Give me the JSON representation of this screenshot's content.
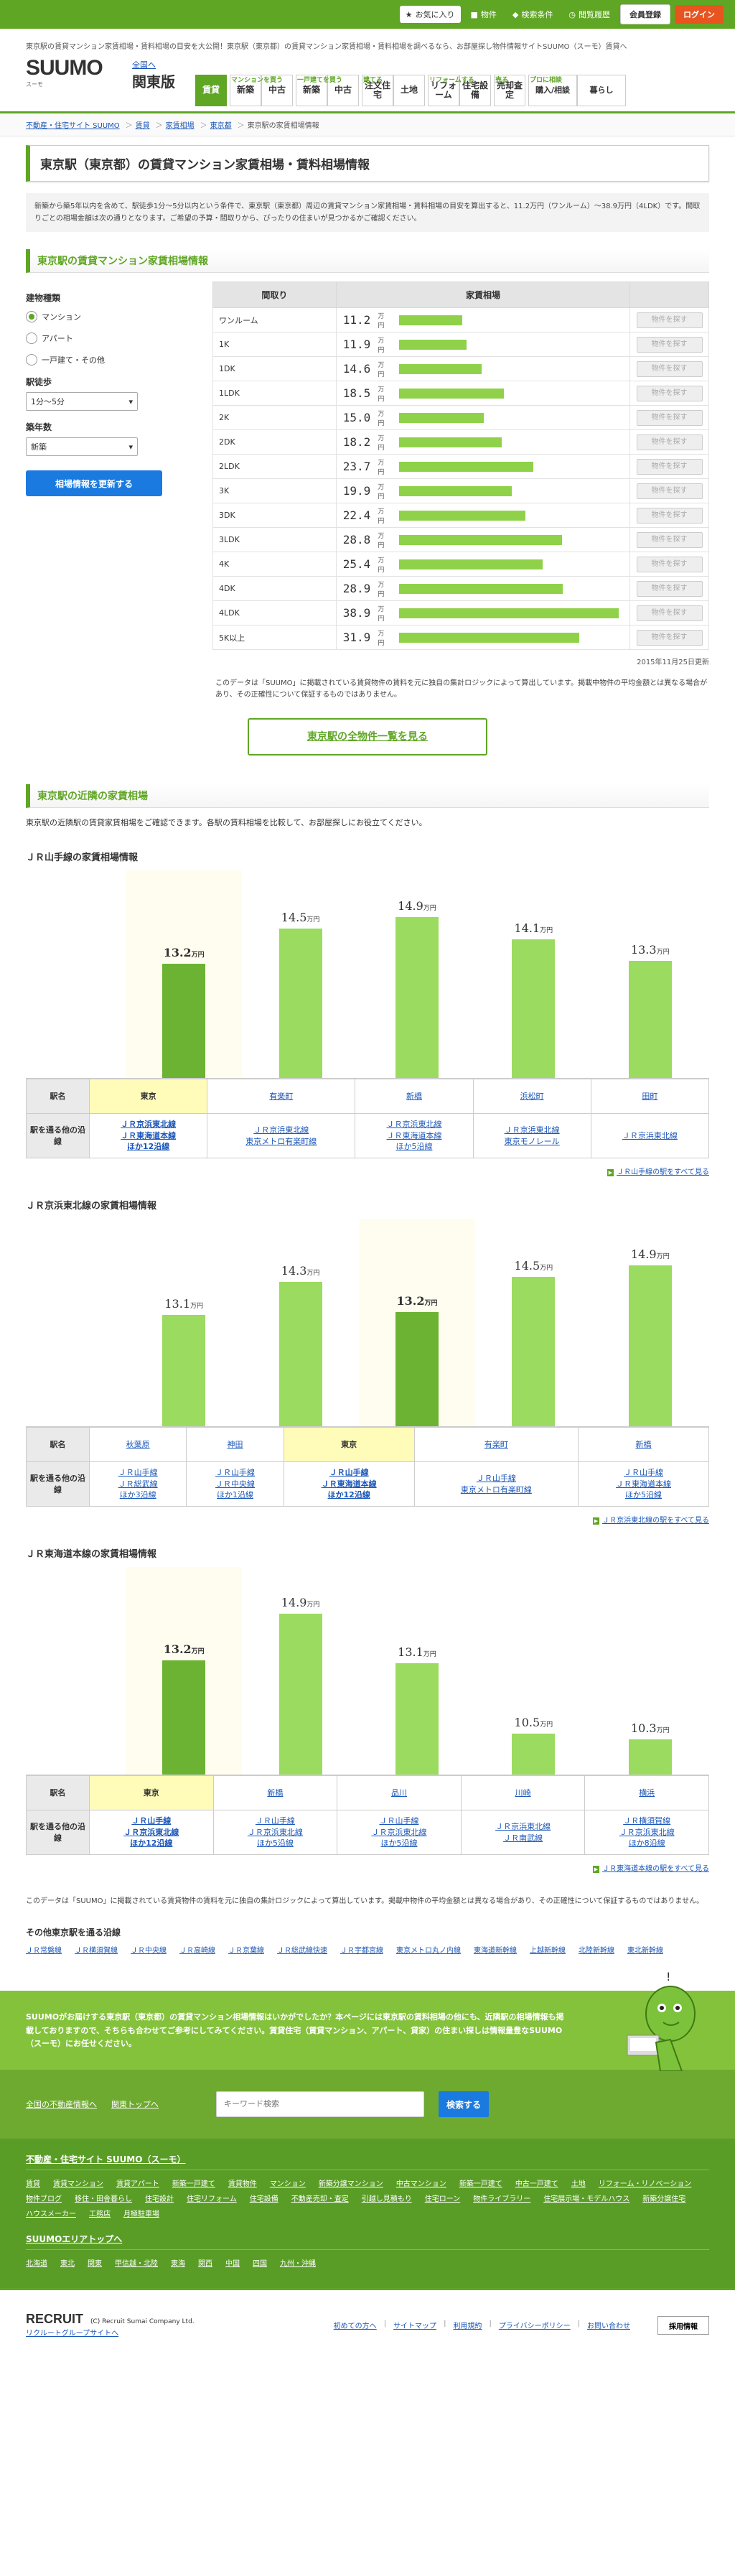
{
  "topbar": {
    "fav": "お気に入り",
    "property": "物件",
    "search_cond": "検索条件",
    "history": "閲覧履歴",
    "register": "会員登録",
    "login": "ログイン"
  },
  "header": {
    "tagline": "東京駅の賃貸マンション家賃相場・賃料相場の目安を大公開！東京駅（東京都）の賃貸マンション家賃相場・賃料相場を調べるなら、お部屋探し物件情報サイトSUUMO（スーモ）賃貸へ",
    "logo": "SUUMO",
    "logo_sub": "スーモ",
    "region": "全国へ",
    "region_name": "関東版",
    "nav": [
      {
        "label": "借りる",
        "items": [
          "賃貸"
        ]
      },
      {
        "label": "マンションを買う",
        "items": [
          "新築",
          "中古"
        ]
      },
      {
        "label": "一戸建てを買う",
        "items": [
          "新築",
          "中古"
        ]
      },
      {
        "label": "建てる",
        "items": [
          "注文住宅",
          "土地"
        ]
      },
      {
        "label": "リフォームする",
        "items": [
          "リフォーム",
          "住宅設備"
        ]
      },
      {
        "label": "売る",
        "items": [
          "売却査定"
        ]
      },
      {
        "label": "プロに相談",
        "items": [
          "購入/相談",
          "暮らし"
        ]
      }
    ]
  },
  "breadcrumb": [
    "不動産・住宅サイト SUUMO",
    "賃貸",
    "家賃相場",
    "東京都",
    "東京駅の家賃相場情報"
  ],
  "page_title": "東京駅（東京都）の賃貸マンション家賃相場・賃料相場情報",
  "intro": "新築から築5年以内を含めて、駅徒歩1分〜5分以内という条件で、東京駅（東京都）周辺の賃貸マンション家賃相場・賃料相場の目安を算出すると、11.2万円（ワンルーム）〜38.9万円（4LDK）です。間取りごとの相場金額は次の通りとなります。ご希望の予算・間取りから、ぴったりの住まいが見つかるかご確認ください。",
  "rent_section": {
    "title": "東京駅の賃貸マンション家賃相場情報",
    "side": {
      "type_label": "建物種類",
      "types": [
        "マンション",
        "アパート",
        "一戸建て・その他"
      ],
      "walk_label": "駅徒歩",
      "walk_value": "1分〜5分",
      "age_label": "築年数",
      "age_value": "新築",
      "update_btn": "相場情報を更新する"
    },
    "col_madori": "間取り",
    "col_rent": "家賃相場",
    "unit": "万円",
    "btn_label": "物件を探す",
    "rows": [
      {
        "m": "ワンルーム",
        "v": 11.2
      },
      {
        "m": "1K",
        "v": 11.9
      },
      {
        "m": "1DK",
        "v": 14.6
      },
      {
        "m": "1LDK",
        "v": 18.5
      },
      {
        "m": "2K",
        "v": 15.0
      },
      {
        "m": "2DK",
        "v": 18.2
      },
      {
        "m": "2LDK",
        "v": 23.7
      },
      {
        "m": "3K",
        "v": 19.9
      },
      {
        "m": "3DK",
        "v": 22.4
      },
      {
        "m": "3LDK",
        "v": 28.8
      },
      {
        "m": "4K",
        "v": 25.4
      },
      {
        "m": "4DK",
        "v": 28.9
      },
      {
        "m": "4LDK",
        "v": 38.9
      },
      {
        "m": "5K以上",
        "v": 31.9
      }
    ],
    "date": "2015年11月25日更新",
    "note": "このデータは「SUUMO」に掲載されている賃貸物件の賃料を元に独自の集計ロジックによって算出しています。掲載中物件の平均金額とは異なる場合があり、その正確性について保証するものではありません。",
    "list_btn": "東京駅の全物件一覧を見る"
  },
  "neighbor": {
    "title": "東京駅の近隣の家賃相場",
    "intro": "東京駅の近隣駅の賃貸家賃相場をご確認できます。各駅の賃料相場を比較して、お部屋探しにお役立てください。",
    "row_name": "駅名",
    "row_lines": "駅を通る他の沿線",
    "lines": [
      {
        "title": "ＪＲ山手線の家賃相場情報",
        "more": "ＪＲ山手線の駅をすべて見る",
        "stations": [
          {
            "name": "東京",
            "v": 13.2,
            "hl": true,
            "other": [
              "ＪＲ京浜東北線",
              "ＪＲ東海道本線",
              "ほか12沿線"
            ]
          },
          {
            "name": "有楽町",
            "v": 14.5,
            "other": [
              "ＪＲ京浜東北線",
              "東京メトロ有楽町線"
            ]
          },
          {
            "name": "新橋",
            "v": 14.9,
            "other": [
              "ＪＲ京浜東北線",
              "ＪＲ東海道本線",
              "ほか5沿線"
            ]
          },
          {
            "name": "浜松町",
            "v": 14.1,
            "other": [
              "ＪＲ京浜東北線",
              "東京モノレール"
            ]
          },
          {
            "name": "田町",
            "v": 13.3,
            "other": [
              "ＪＲ京浜東北線"
            ]
          }
        ]
      },
      {
        "title": "ＪＲ京浜東北線の家賃相場情報",
        "more": "ＪＲ京浜東北線の駅をすべて見る",
        "stations": [
          {
            "name": "秋葉原",
            "v": 13.1,
            "other": [
              "ＪＲ山手線",
              "ＪＲ総武線",
              "ほか3沿線"
            ]
          },
          {
            "name": "神田",
            "v": 14.3,
            "other": [
              "ＪＲ山手線",
              "ＪＲ中央線",
              "ほか1沿線"
            ]
          },
          {
            "name": "東京",
            "v": 13.2,
            "hl": true,
            "other": [
              "ＪＲ山手線",
              "ＪＲ東海道本線",
              "ほか12沿線"
            ]
          },
          {
            "name": "有楽町",
            "v": 14.5,
            "other": [
              "ＪＲ山手線",
              "東京メトロ有楽町線"
            ]
          },
          {
            "name": "新橋",
            "v": 14.9,
            "other": [
              "ＪＲ山手線",
              "ＪＲ東海道本線",
              "ほか5沿線"
            ]
          }
        ]
      },
      {
        "title": "ＪＲ東海道本線の家賃相場情報",
        "more": "ＪＲ東海道本線の駅をすべて見る",
        "stations": [
          {
            "name": "東京",
            "v": 13.2,
            "hl": true,
            "other": [
              "ＪＲ山手線",
              "ＪＲ京浜東北線",
              "ほか12沿線"
            ]
          },
          {
            "name": "新橋",
            "v": 14.9,
            "other": [
              "ＪＲ山手線",
              "ＪＲ京浜東北線",
              "ほか5沿線"
            ]
          },
          {
            "name": "品川",
            "v": 13.1,
            "other": [
              "ＪＲ山手線",
              "ＪＲ京浜東北線",
              "ほか5沿線"
            ]
          },
          {
            "name": "川崎",
            "v": 10.5,
            "other": [
              "ＪＲ京浜東北線",
              "ＪＲ南武線"
            ]
          },
          {
            "name": "横浜",
            "v": 10.3,
            "other": [
              "ＪＲ横須賀線",
              "ＪＲ京浜東北線",
              "ほか8沿線"
            ]
          }
        ]
      }
    ],
    "bottom_note": "このデータは「SUUMO」に掲載されている賃貸物件の賃料を元に独自の集計ロジックによって算出しています。掲載中物件の平均金額とは異なる場合があり、その正確性について保証するものではありません。"
  },
  "other_lines": {
    "title": "その他東京駅を通る沿線",
    "items": [
      "ＪＲ常磐線",
      "ＪＲ横須賀線",
      "ＪＲ中央線",
      "ＪＲ高崎線",
      "ＪＲ京葉線",
      "ＪＲ総武線快速",
      "ＪＲ宇都宮線",
      "東京メトロ丸ノ内線",
      "東海道新幹線",
      "上越新幹線",
      "北陸新幹線",
      "東北新幹線"
    ]
  },
  "promo": "SUUMOがお届けする東京駅（東京都）の賃貸マンション相場情報はいかがでしたか？本ページには東京駅の賃料相場の他にも、近隣駅の相場情報も掲載しておりますので、そちらも合わせてご参考にしてみてください。賃貸住宅（賃貸マンション、アパート、貸家）の住まい探しは情報量豊なSUUMO（スーモ）にお任せください。",
  "search": {
    "link1": "全国の不動産情報へ",
    "link2": "関東トップへ",
    "placeholder": "キーワード検索",
    "btn": "検索する"
  },
  "footer": {
    "heading": "不動産・住宅サイト SUUMO（スーモ）",
    "links": [
      "賃貸",
      "賃貸マンション",
      "賃貸アパート",
      "新築一戸建て",
      "賃貸物件",
      "マンション",
      "新築分譲マンション",
      "中古マンション",
      "新築一戸建て",
      "中古一戸建て",
      "土地",
      "リフォーム・リノベーション",
      "物件ブログ",
      "移住・田舎暮らし",
      "住宅設計",
      "住宅リフォーム",
      "住宅設備",
      "不動産売却・査定",
      "引越し見積もり",
      "住宅ローン",
      "物件ライブラリー",
      "住宅展示場・モデルハウス",
      "新築分譲住宅",
      "ハウスメーカー",
      "工務店",
      "月極駐車場"
    ],
    "area_heading": "SUUMOエリアトップへ",
    "areas": [
      "北海道",
      "東北",
      "関東",
      "甲信越・北陸",
      "東海",
      "関西",
      "中国",
      "四国",
      "九州・沖縄"
    ]
  },
  "footer_bottom": {
    "brand": "RECRUIT",
    "copy": "(C) Recruit Sumai Company Ltd.",
    "group": "リクルートグループサイトへ",
    "links": [
      "初めての方へ",
      "サイトマップ",
      "利用規約",
      "プライバシーポリシー",
      "お問い合わせ"
    ],
    "recruit_btn": "採用情報"
  }
}
